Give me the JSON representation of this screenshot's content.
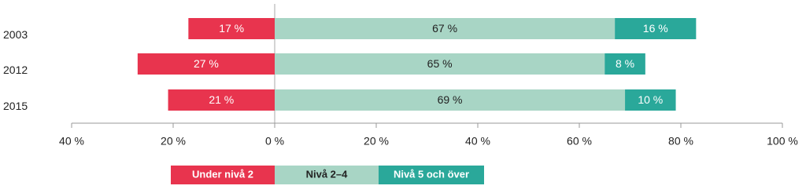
{
  "chart_data": {
    "type": "diverging-bar",
    "categories": [
      "2003",
      "2012",
      "2015"
    ],
    "series": [
      {
        "name": "Under nivå 2",
        "color": "#e8344e",
        "values": [
          -17,
          -27,
          -21
        ],
        "value_labels": [
          "17 %",
          "27 %",
          "21 %"
        ]
      },
      {
        "name": "Nivå 2–4",
        "color": "#a8d5c5",
        "values": [
          67,
          65,
          69
        ],
        "value_labels": [
          "67 %",
          "65 %",
          "69 %"
        ]
      },
      {
        "name": "Nivå 5 och över",
        "color": "#2aa89a",
        "values": [
          16,
          8,
          10
        ],
        "value_labels": [
          "16 %",
          "8 %",
          "10 %"
        ]
      }
    ],
    "xlim": [
      -40,
      100
    ],
    "xticks": [
      {
        "value": -40,
        "label": "40 %"
      },
      {
        "value": -20,
        "label": "20 %"
      },
      {
        "value": 0,
        "label": "0 %"
      },
      {
        "value": 20,
        "label": "20 %"
      },
      {
        "value": 40,
        "label": "40 %"
      },
      {
        "value": 60,
        "label": "60 %"
      },
      {
        "value": 80,
        "label": "80 %"
      },
      {
        "value": 100,
        "label": "100 %"
      }
    ],
    "legend": "bottom"
  }
}
